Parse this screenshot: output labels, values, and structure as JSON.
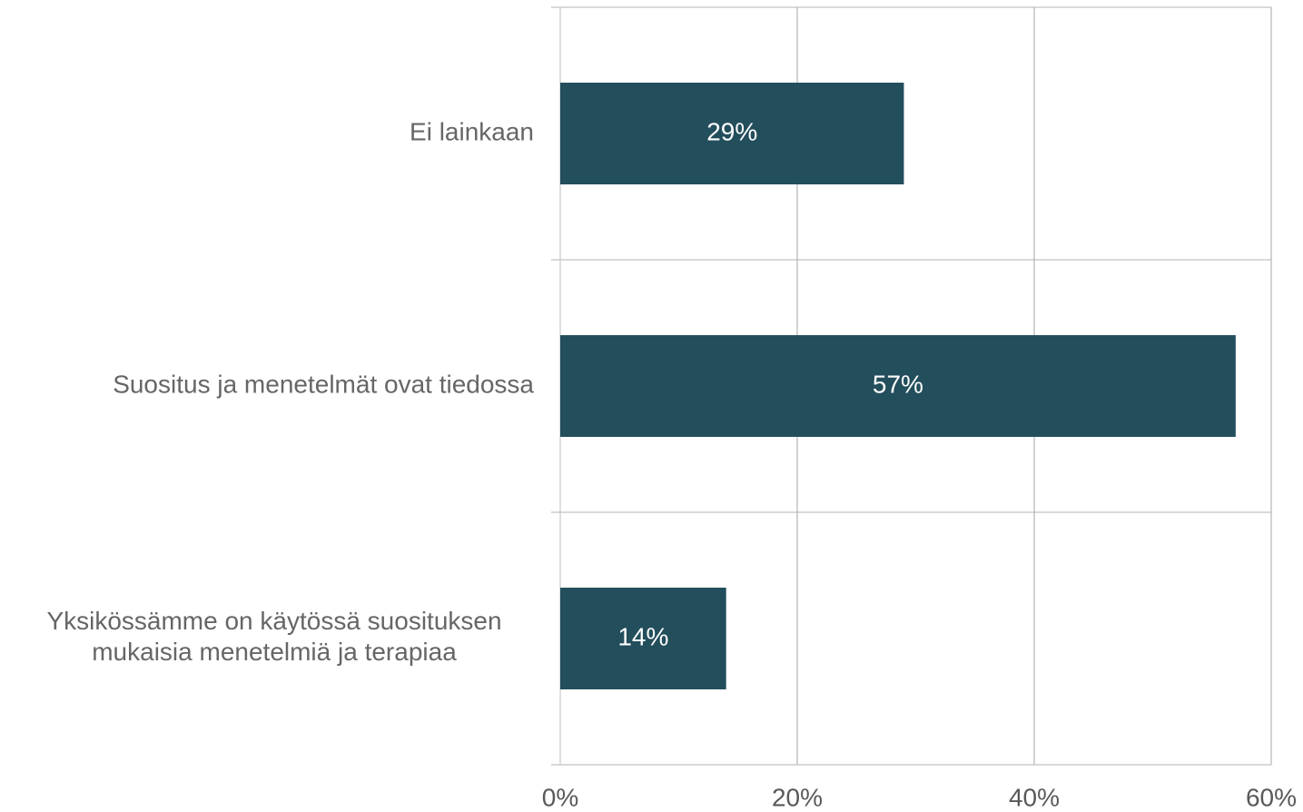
{
  "chart_data": {
    "type": "bar",
    "orientation": "horizontal",
    "categories": [
      "Ei lainkaan",
      "Suositus ja menetelmät ovat tiedossa",
      "Yksikössämme on käytössä suosituksen mukaisia menetelmiä ja terapiaa"
    ],
    "values": [
      29,
      57,
      14
    ],
    "value_labels": [
      "29%",
      "57%",
      "14%"
    ],
    "color": "#234e5c",
    "xlim": [
      0,
      60
    ],
    "xticks": [
      {
        "value": 0,
        "label": "0%"
      },
      {
        "value": 20,
        "label": "20%"
      },
      {
        "value": 40,
        "label": "40%"
      },
      {
        "value": 60,
        "label": "60%"
      }
    ],
    "grid": true
  }
}
